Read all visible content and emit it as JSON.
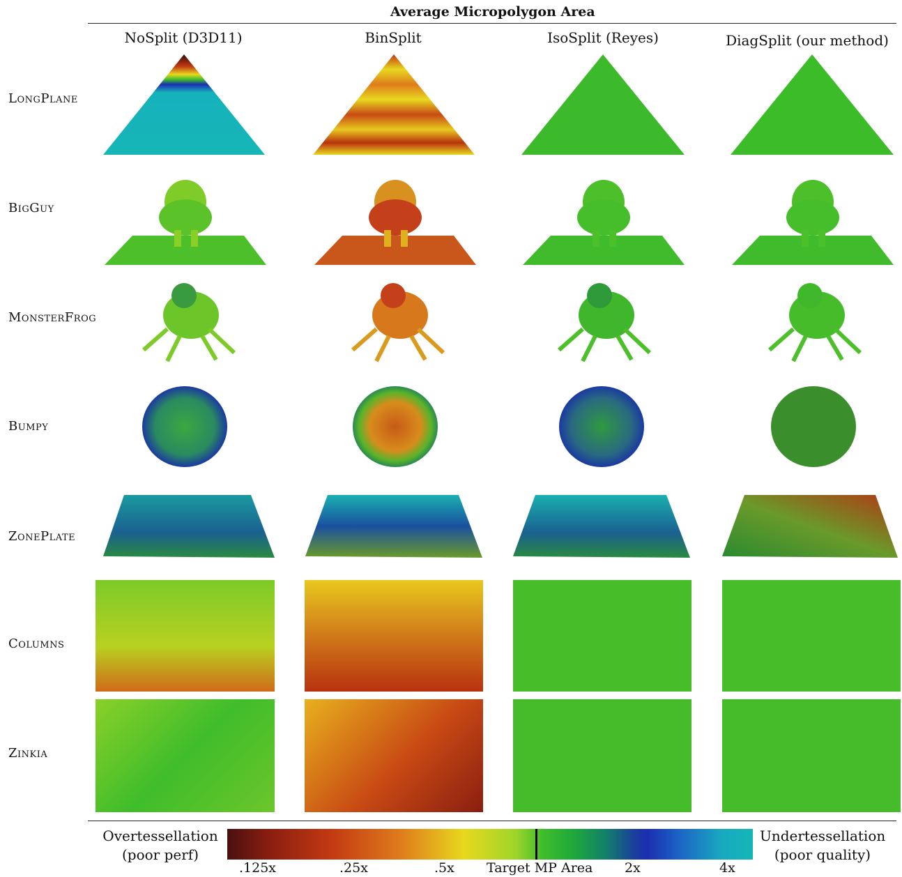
{
  "figure": {
    "title": "Average Micropolygon Area",
    "columns": [
      "NoSplit (D3D11)",
      "BinSplit",
      "IsoSplit (Reyes)",
      "DiagSplit (our method)"
    ],
    "rows": [
      "LongPlane",
      "BigGuy",
      "MonsterFrog",
      "Bumpy",
      "ZonePlate",
      "Columns",
      "Zinkia"
    ]
  },
  "legend": {
    "left_line1": "Overtessellation",
    "left_line2": "(poor perf)",
    "right_line1": "Undertessellation",
    "right_line2": "(poor quality)",
    "ticks": [
      ".125x",
      ".25x",
      ".5x",
      "Target MP Area",
      "2x",
      "4x"
    ]
  },
  "colors": {
    "over": "#8a1e10",
    "mid": "#e8d81e",
    "target": "#3fbd2a",
    "under": "#1b2fb0",
    "far_under": "#14b6b8"
  }
}
